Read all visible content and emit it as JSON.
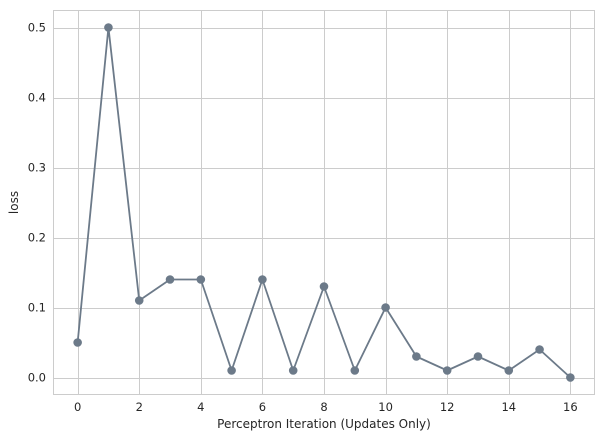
{
  "chart_data": {
    "type": "line",
    "title": "",
    "xlabel": "Perceptron Iteration (Updates Only)",
    "ylabel": "loss",
    "xlim": [
      -0.8,
      16.8
    ],
    "ylim": [
      -0.025,
      0.525
    ],
    "xticks": [
      0,
      2,
      4,
      6,
      8,
      10,
      12,
      14,
      16
    ],
    "yticks": [
      0.0,
      0.1,
      0.2,
      0.3,
      0.4,
      0.5
    ],
    "xtick_labels": [
      "0",
      "2",
      "4",
      "6",
      "8",
      "10",
      "12",
      "14",
      "16"
    ],
    "ytick_labels": [
      "0.0",
      "0.1",
      "0.2",
      "0.3",
      "0.4",
      "0.5"
    ],
    "grid": true,
    "series": [
      {
        "color": "#6c7a89",
        "marker": "circle",
        "x": [
          0,
          1,
          2,
          3,
          4,
          5,
          6,
          7,
          8,
          9,
          10,
          11,
          12,
          13,
          14,
          15,
          16
        ],
        "y": [
          0.05,
          0.5,
          0.11,
          0.14,
          0.14,
          0.01,
          0.14,
          0.01,
          0.13,
          0.01,
          0.1,
          0.03,
          0.01,
          0.03,
          0.01,
          0.04,
          0.0
        ]
      }
    ]
  }
}
